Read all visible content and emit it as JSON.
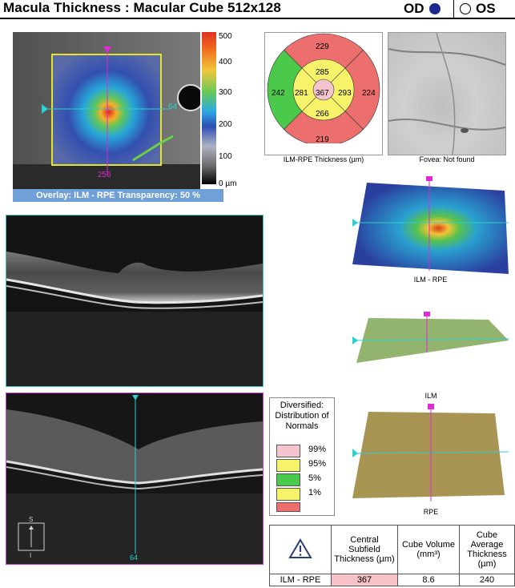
{
  "header": {
    "title": "Macula Thickness : Macular Cube 512x128",
    "od_label": "OD",
    "os_label": "OS",
    "od_selected": true
  },
  "thickness_map": {
    "overlay_caption": "Overlay: ILM - RPE  Transparency: 50 %",
    "cursor_h": "64",
    "cursor_v": "256",
    "scale_labels": [
      "500",
      "400",
      "300",
      "200",
      "100",
      "0 µm"
    ]
  },
  "etdrs": {
    "caption": "ILM-RPE Thickness (µm)",
    "center": "367",
    "inner_superior": "285",
    "inner_nasal": "281",
    "inner_temporal": "293",
    "inner_inferior": "266",
    "outer_superior": "229",
    "outer_nasal": "242",
    "outer_temporal": "224",
    "outer_inferior": "219",
    "colors": {
      "red": "#ec6f6d",
      "yellow": "#f6f26a",
      "green": "#4bc94b",
      "pink": "#f5c5cf"
    }
  },
  "fundus": {
    "caption": "Fovea: Not found"
  },
  "bscan_lower": {
    "cursor_label": "64",
    "orientation_top": "S",
    "orientation_bottom": "I"
  },
  "surfaces": {
    "surf1_caption": "ILM - RPE",
    "surf3_top_caption": "ILM",
    "surf3_bottom_caption": "RPE"
  },
  "normals_legend": {
    "title": "Diversified: Distribution of Normals",
    "rows": [
      {
        "pct": "99%",
        "color": "#f5c5cf"
      },
      {
        "pct": "95%",
        "color": "#f6f26a"
      },
      {
        "pct": "5%",
        "color": "#4bc94b"
      },
      {
        "pct": "1%",
        "color": "#f6f26a"
      },
      {
        "pct": "",
        "color": "#ec6f6d"
      }
    ]
  },
  "stats_table": {
    "headers": [
      "Central Subfield Thickness (µm)",
      "Cube Volume (mm³)",
      "Cube Average Thickness (µm)"
    ],
    "row_label": "ILM - RPE",
    "values": [
      "367",
      "8.6",
      "240"
    ]
  }
}
